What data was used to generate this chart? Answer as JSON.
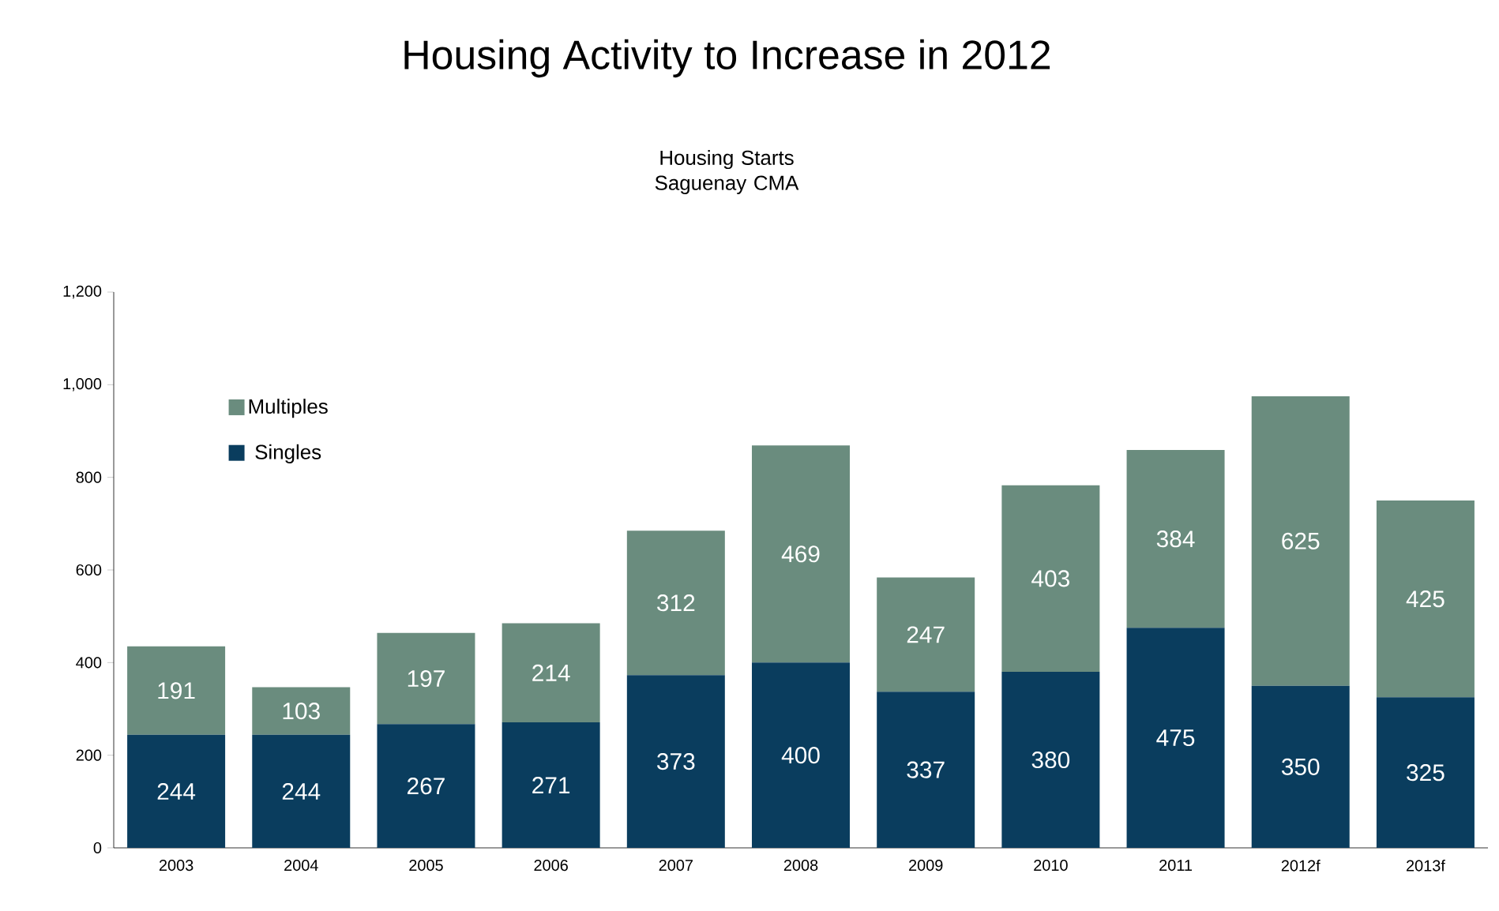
{
  "chart_data": {
    "type": "bar",
    "title": "Housing Activity to Increase in 2012",
    "subtitle": "Housing Starts\nSaguenay CMA",
    "categories": [
      "2003",
      "2004",
      "2005",
      "2006",
      "2007",
      "2008",
      "2009",
      "2010",
      "2011",
      "2012f",
      "2013f"
    ],
    "stacked": true,
    "series": [
      {
        "name": "Singles",
        "color": "#0a3d5e",
        "values": [
          244,
          244,
          267,
          271,
          373,
          400,
          337,
          380,
          475,
          350,
          325
        ]
      },
      {
        "name": "Multiples",
        "color": "#6a8c7e",
        "values": [
          191,
          103,
          197,
          214,
          312,
          469,
          247,
          403,
          384,
          625,
          425
        ]
      }
    ],
    "ylim": [
      0,
      1200
    ],
    "yticks": [
      0,
      200,
      400,
      600,
      800,
      {
        "value": 1000,
        "label": "1,000"
      },
      {
        "value": 1200,
        "label": "1,200"
      }
    ],
    "data_labels": true,
    "grid": false,
    "legend": "top left"
  }
}
